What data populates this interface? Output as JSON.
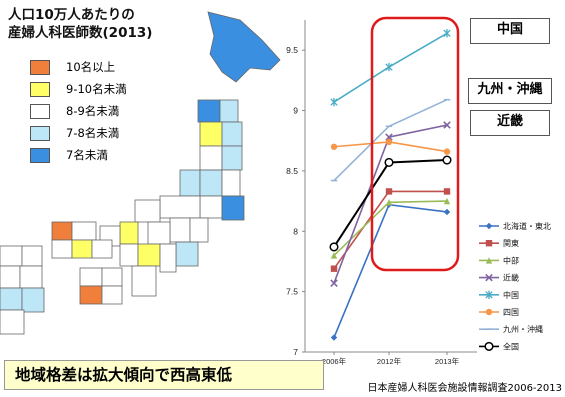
{
  "map_title_line1": "人口10万人あたりの",
  "map_title_line2": "産婦人科医師数(2013)",
  "legend": [
    {
      "label": "10名以上",
      "color": "#f07f3c"
    },
    {
      "label": "9-10名未満",
      "color": "#ffff66"
    },
    {
      "label": "8-9名未満",
      "color": "#ffffff"
    },
    {
      "label": "7-8名未満",
      "color": "#bde6f7"
    },
    {
      "label": "7名未満",
      "color": "#3b8fe0"
    }
  ],
  "banner_text": "地域格差は拡大傾向で西高東低",
  "source_text": "日本産婦人科医会施設情報調査2006-2013",
  "callouts": [
    "中国",
    "九州・沖縄",
    "近畿"
  ],
  "chart_data": {
    "type": "line",
    "categories": [
      "2006年",
      "2012年",
      "2013年"
    ],
    "ylim": [
      7,
      9.75
    ],
    "yticks": [
      "7",
      "7.5",
      "8",
      "8.5",
      "9",
      "9.5"
    ],
    "series": [
      {
        "name": "北海道・東北",
        "color": "#3a72c4",
        "marker": "diamond",
        "values": [
          7.12,
          8.22,
          8.16
        ]
      },
      {
        "name": "関東",
        "color": "#c0504d",
        "marker": "square",
        "values": [
          7.69,
          8.33,
          8.33
        ]
      },
      {
        "name": "中部",
        "color": "#9bbb59",
        "marker": "triangle",
        "values": [
          7.8,
          8.24,
          8.25
        ]
      },
      {
        "name": "近畿",
        "color": "#8064a2",
        "marker": "x",
        "values": [
          7.57,
          8.78,
          8.88
        ]
      },
      {
        "name": "中国",
        "color": "#4bacc6",
        "marker": "star",
        "values": [
          9.07,
          9.36,
          9.64
        ]
      },
      {
        "name": "四国",
        "color": "#f79646",
        "marker": "circle",
        "values": [
          8.7,
          8.74,
          8.66
        ]
      },
      {
        "name": "九州・沖縄",
        "color": "#95b3d7",
        "marker": "plus",
        "values": [
          8.42,
          8.87,
          9.09
        ]
      },
      {
        "name": "全国",
        "color": "#000000",
        "marker": "open-circle",
        "values": [
          7.87,
          8.57,
          8.59
        ]
      }
    ]
  }
}
